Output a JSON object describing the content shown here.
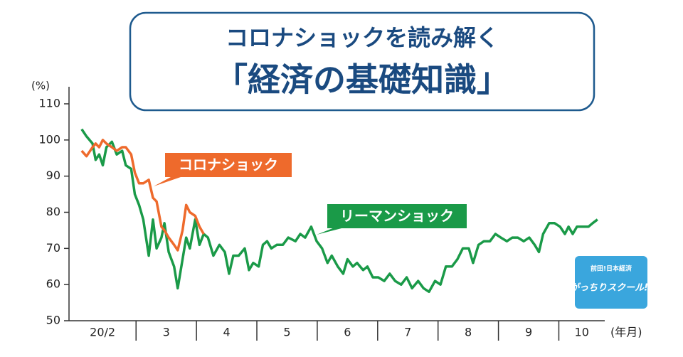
{
  "header": {
    "title_line1": "コロナショックを読み解く",
    "title_line2": "「経済の基礎知識」"
  },
  "logo": {
    "line1": "前田!日本経済",
    "line2": "がっちりスクール!!"
  },
  "chart_data": {
    "type": "line",
    "y_unit": "(%)",
    "x_unit": "(年月)",
    "month_labels": [
      "20/2",
      "3",
      "4",
      "5",
      "6",
      "7",
      "8",
      "9",
      "10"
    ],
    "xlim": [
      -0.11,
      8.76
    ],
    "xticks": [
      1,
      2,
      3,
      4,
      5,
      6,
      7,
      8
    ],
    "ylim": [
      50,
      110
    ],
    "yticks": [
      50,
      60,
      70,
      80,
      90,
      100,
      110
    ],
    "x": [
      0.1,
      0.18,
      0.28,
      0.33,
      0.39,
      0.45,
      0.51,
      0.6,
      0.68,
      0.77,
      0.83,
      0.92,
      0.98,
      1.05,
      1.12,
      1.21,
      1.28,
      1.34,
      1.42,
      1.47,
      1.54,
      1.63,
      1.69,
      1.77,
      1.83,
      1.89,
      1.98,
      2.05,
      2.12,
      2.19,
      2.28,
      2.38,
      2.47,
      2.54,
      2.61,
      2.7,
      2.8,
      2.87,
      2.94,
      3.03,
      3.1,
      3.17,
      3.24,
      3.33,
      3.43,
      3.52,
      3.64,
      3.72,
      3.8,
      3.9,
      3.99,
      4.08,
      4.17,
      4.24,
      4.34,
      4.43,
      4.5,
      4.59,
      4.66,
      4.76,
      4.83,
      4.92,
      5.01,
      5.11,
      5.2,
      5.29,
      5.39,
      5.48,
      5.57,
      5.67,
      5.76,
      5.85,
      5.95,
      6.04,
      6.13,
      6.23,
      6.32,
      6.41,
      6.51,
      6.58,
      6.67,
      6.76,
      6.86,
      6.95,
      7.04,
      7.14,
      7.23,
      7.32,
      7.42,
      7.51,
      7.6,
      7.67,
      7.74,
      7.84,
      7.93,
      8.02,
      8.1,
      8.16,
      8.23,
      8.3,
      8.4,
      8.49,
      8.56,
      8.64
    ],
    "series": [
      {
        "name": "リーマンショック",
        "color": "#1a9a48",
        "values": [
          103,
          101,
          99,
          94.5,
          96,
          93,
          98,
          99.5,
          96,
          97,
          93,
          92,
          85,
          82,
          78,
          68,
          78,
          70,
          73,
          77,
          69,
          65,
          59,
          67,
          73,
          70,
          78,
          71,
          74,
          73,
          68,
          71,
          69,
          63,
          68,
          68,
          70,
          64,
          66,
          65,
          71,
          72,
          70,
          71,
          71,
          73,
          72,
          74,
          73,
          76,
          72,
          70,
          66,
          68,
          65,
          63,
          67,
          65,
          66,
          64,
          65,
          62,
          62,
          61,
          63,
          61,
          60,
          62,
          59,
          61,
          59,
          58,
          61,
          60,
          65,
          65,
          67,
          70,
          70,
          66,
          71,
          72,
          72,
          74,
          73,
          72,
          73,
          73,
          72,
          73,
          71,
          69,
          74,
          77,
          77,
          76,
          74,
          76,
          74,
          76,
          76,
          76,
          77,
          78
        ]
      },
      {
        "name": "コロナショック",
        "color": "#ee6a2c",
        "values": [
          97,
          95.5,
          98,
          99,
          98,
          100,
          99,
          98,
          97,
          98,
          98,
          96,
          91,
          88,
          88,
          89,
          84,
          83,
          76,
          75,
          73,
          71,
          69.5,
          75,
          82,
          80,
          79,
          76,
          74,
          null,
          null,
          null,
          null,
          null,
          null,
          null,
          null,
          null,
          null,
          null,
          null,
          null,
          null,
          null,
          null,
          null,
          null,
          null,
          null,
          null,
          null,
          null,
          null,
          null,
          null,
          null,
          null,
          null,
          null,
          null,
          null,
          null,
          null,
          null,
          null,
          null,
          null,
          null,
          null,
          null,
          null,
          null,
          null,
          null,
          null,
          null,
          null,
          null,
          null,
          null,
          null,
          null,
          null,
          null,
          null,
          null,
          null,
          null,
          null,
          null,
          null,
          null,
          null,
          null,
          null,
          null,
          null,
          null,
          null,
          null,
          null,
          null,
          null,
          null
        ]
      }
    ]
  }
}
